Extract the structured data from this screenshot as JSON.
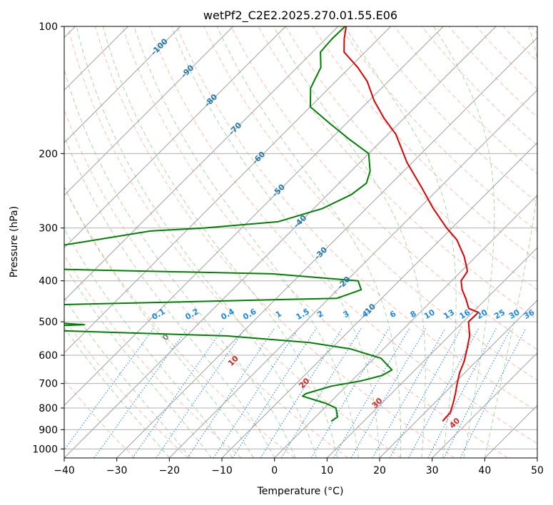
{
  "chart_data": {
    "type": "line",
    "subtype": "skew-T log-p diagram",
    "title": "wetPf2_C2E2.2025.270.01.55.E06",
    "xlabel": "Temperature (°C)",
    "ylabel": "Pressure (hPa)",
    "xlim": [
      -40,
      50
    ],
    "ylim": [
      1050,
      100
    ],
    "y_scale": "log",
    "skew": "isotherms tilted 45° to the right",
    "x_ticks": [
      -40,
      -30,
      -20,
      -10,
      0,
      10,
      20,
      30,
      40,
      50
    ],
    "x_tick_labels": [
      "−40",
      "−30",
      "−20",
      "−10",
      "0",
      "10",
      "20",
      "30",
      "40",
      "50"
    ],
    "y_ticks": [
      100,
      200,
      300,
      400,
      500,
      600,
      700,
      800,
      900,
      1000
    ],
    "y_tick_labels": [
      "100",
      "200",
      "300",
      "400",
      "500",
      "600",
      "700",
      "800",
      "900",
      "1000"
    ],
    "grid": true,
    "colors": {
      "temperature": "#e00000",
      "dewpoint": "#008000",
      "isotherm": "#a0a0a0",
      "dry_adiabat": "#f4a48a",
      "moist_adiabat": "#8cc98c",
      "mixing_ratio": "#1e88e5",
      "isotherm_label": "#1f77b4",
      "mixing_ratio_label": "#1e88e5",
      "dry_adiabat_label": "#d62728",
      "zero_label": "#808080"
    },
    "series": [
      {
        "role": "temperature",
        "points": [
          {
            "p": 860,
            "t": 25.0
          },
          {
            "p": 820,
            "t": 24.8
          },
          {
            "p": 780,
            "t": 23.6
          },
          {
            "p": 740,
            "t": 22.2
          },
          {
            "p": 700,
            "t": 20.6
          },
          {
            "p": 660,
            "t": 19.0
          },
          {
            "p": 620,
            "t": 17.7
          },
          {
            "p": 580,
            "t": 15.9
          },
          {
            "p": 540,
            "t": 13.9
          },
          {
            "p": 500,
            "t": 11.0
          },
          {
            "p": 475,
            "t": 11.1
          },
          {
            "p": 465,
            "t": 8.5
          },
          {
            "p": 440,
            "t": 6.0
          },
          {
            "p": 420,
            "t": 3.7
          },
          {
            "p": 400,
            "t": 1.8
          },
          {
            "p": 380,
            "t": 1.2
          },
          {
            "p": 370,
            "t": 0.1
          },
          {
            "p": 350,
            "t": -2.3
          },
          {
            "p": 320,
            "t": -6.8
          },
          {
            "p": 300,
            "t": -11.0
          },
          {
            "p": 270,
            "t": -17.2
          },
          {
            "p": 240,
            "t": -23.6
          },
          {
            "p": 210,
            "t": -31.0
          },
          {
            "p": 180,
            "t": -38.5
          },
          {
            "p": 165,
            "t": -43.8
          },
          {
            "p": 150,
            "t": -49.0
          },
          {
            "p": 135,
            "t": -54.0
          },
          {
            "p": 125,
            "t": -58.5
          },
          {
            "p": 115,
            "t": -64.0
          },
          {
            "p": 107,
            "t": -66.5
          },
          {
            "p": 100,
            "t": -68.5
          }
        ]
      },
      {
        "role": "dewpoint",
        "points": [
          {
            "p": 860,
            "t": 3.8
          },
          {
            "p": 840,
            "t": 4.2
          },
          {
            "p": 800,
            "t": 2.2
          },
          {
            "p": 780,
            "t": -0.6
          },
          {
            "p": 750,
            "t": -6.4
          },
          {
            "p": 740,
            "t": -6.3
          },
          {
            "p": 710,
            "t": -2.8
          },
          {
            "p": 690,
            "t": 1.8
          },
          {
            "p": 670,
            "t": 4.8
          },
          {
            "p": 650,
            "t": 5.6
          },
          {
            "p": 610,
            "t": 1.3
          },
          {
            "p": 580,
            "t": -6.2
          },
          {
            "p": 560,
            "t": -15.3
          },
          {
            "p": 540,
            "t": -32.4
          },
          {
            "p": 525,
            "t": -65
          },
          {
            "p": 515,
            "t": -73.7
          },
          {
            "p": 508,
            "t": -61.5
          },
          {
            "p": 502,
            "t": -68.3
          },
          {
            "p": 497,
            "t": -80.5
          },
          {
            "p": 470,
            "t": -85
          },
          {
            "p": 457,
            "t": -74.8
          },
          {
            "p": 440,
            "t": -18.5
          },
          {
            "p": 420,
            "t": -15.5
          },
          {
            "p": 400,
            "t": -17.8
          },
          {
            "p": 385,
            "t": -35.5
          },
          {
            "p": 375,
            "t": -79.6
          },
          {
            "p": 360,
            "t": -90
          },
          {
            "p": 330,
            "t": -81.0
          },
          {
            "p": 305,
            "t": -66.8
          },
          {
            "p": 300,
            "t": -57.3
          },
          {
            "p": 290,
            "t": -44.3
          },
          {
            "p": 270,
            "t": -38.4
          },
          {
            "p": 250,
            "t": -35.5
          },
          {
            "p": 235,
            "t": -34.8
          },
          {
            "p": 220,
            "t": -36.4
          },
          {
            "p": 200,
            "t": -40.0
          },
          {
            "p": 185,
            "t": -46.4
          },
          {
            "p": 170,
            "t": -53.0
          },
          {
            "p": 155,
            "t": -60.0
          },
          {
            "p": 140,
            "t": -63.5
          },
          {
            "p": 125,
            "t": -65.5
          },
          {
            "p": 115,
            "t": -68.5
          },
          {
            "p": 107,
            "t": -68.8
          },
          {
            "p": 100,
            "t": -68.7
          }
        ]
      }
    ],
    "isotherm_labels": {
      "values": [
        -100,
        -90,
        -80,
        -70,
        -60,
        -50,
        -40,
        -30,
        -20,
        -10
      ],
      "texts": [
        "-100",
        "-90",
        "-80",
        "-70",
        "-60",
        "-50",
        "-40",
        "-30",
        "-20",
        "-10"
      ]
    },
    "mixing_ratio_labels": {
      "values": [
        0.1,
        0.2,
        0.4,
        0.6,
        1,
        1.5,
        2,
        3,
        4,
        6,
        8,
        10,
        13,
        16,
        20,
        25,
        30,
        36
      ],
      "texts": [
        "0.1",
        "0.2",
        "0.4",
        "0.6",
        "1",
        "1.5",
        "2",
        "3",
        "4",
        "6",
        "8",
        "10",
        "13",
        "16",
        "20",
        "25",
        "30",
        "36"
      ]
    },
    "dry_adiabat_labels": {
      "values": [
        0,
        10,
        20,
        30,
        40
      ],
      "texts": [
        "0",
        "10",
        "20",
        "30",
        "40"
      ]
    }
  }
}
